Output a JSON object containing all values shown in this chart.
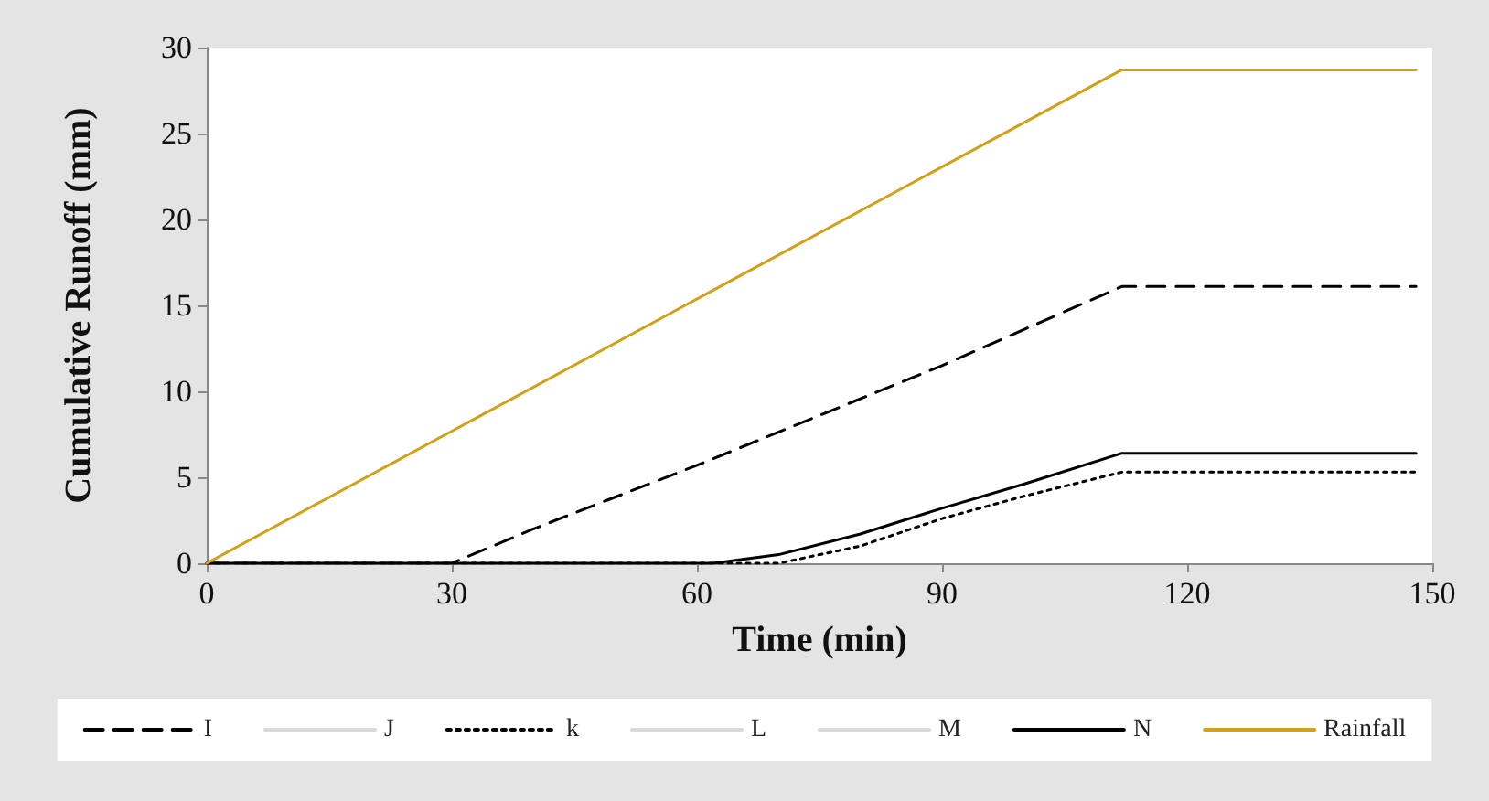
{
  "chart_data": {
    "type": "line",
    "xlabel": "Time (min)",
    "ylabel": "Cumulative Runoff (mm)",
    "xlim": [
      0,
      150
    ],
    "xticks": [
      0,
      30,
      60,
      90,
      120,
      150
    ],
    "ylim": [
      0,
      30
    ],
    "yticks": [
      0,
      5,
      10,
      15,
      20,
      25,
      30
    ],
    "grid": false,
    "legend": "bottom",
    "marker": "none",
    "series": [
      {
        "name": "I",
        "color": "#000000",
        "line_style": "dashed",
        "x": [
          0,
          30,
          40,
          60,
          90,
          112,
          148
        ],
        "values": [
          0,
          0,
          2.0,
          5.7,
          11.5,
          16.1,
          16.1
        ]
      },
      {
        "name": "J",
        "color": "#d9d9d9",
        "line_style": "solid"
      },
      {
        "name": "k",
        "color": "#000000",
        "line_style": "dotted",
        "x": [
          0,
          70,
          80,
          90,
          100,
          112,
          148
        ],
        "values": [
          0,
          0,
          1.0,
          2.6,
          3.9,
          5.3,
          5.3
        ]
      },
      {
        "name": "L",
        "color": "#d9d9d9",
        "line_style": "solid"
      },
      {
        "name": "M",
        "color": "#d9d9d9",
        "line_style": "solid"
      },
      {
        "name": "N",
        "color": "#000000",
        "line_style": "solid",
        "x": [
          0,
          62,
          70,
          80,
          90,
          100,
          112,
          148
        ],
        "values": [
          0,
          0,
          0.5,
          1.7,
          3.2,
          4.6,
          6.4,
          6.4
        ]
      },
      {
        "name": "Rainfall",
        "color": "#d4a017",
        "line_style": "solid",
        "x": [
          0,
          112,
          148
        ],
        "values": [
          0,
          28.7,
          28.7
        ]
      }
    ]
  }
}
